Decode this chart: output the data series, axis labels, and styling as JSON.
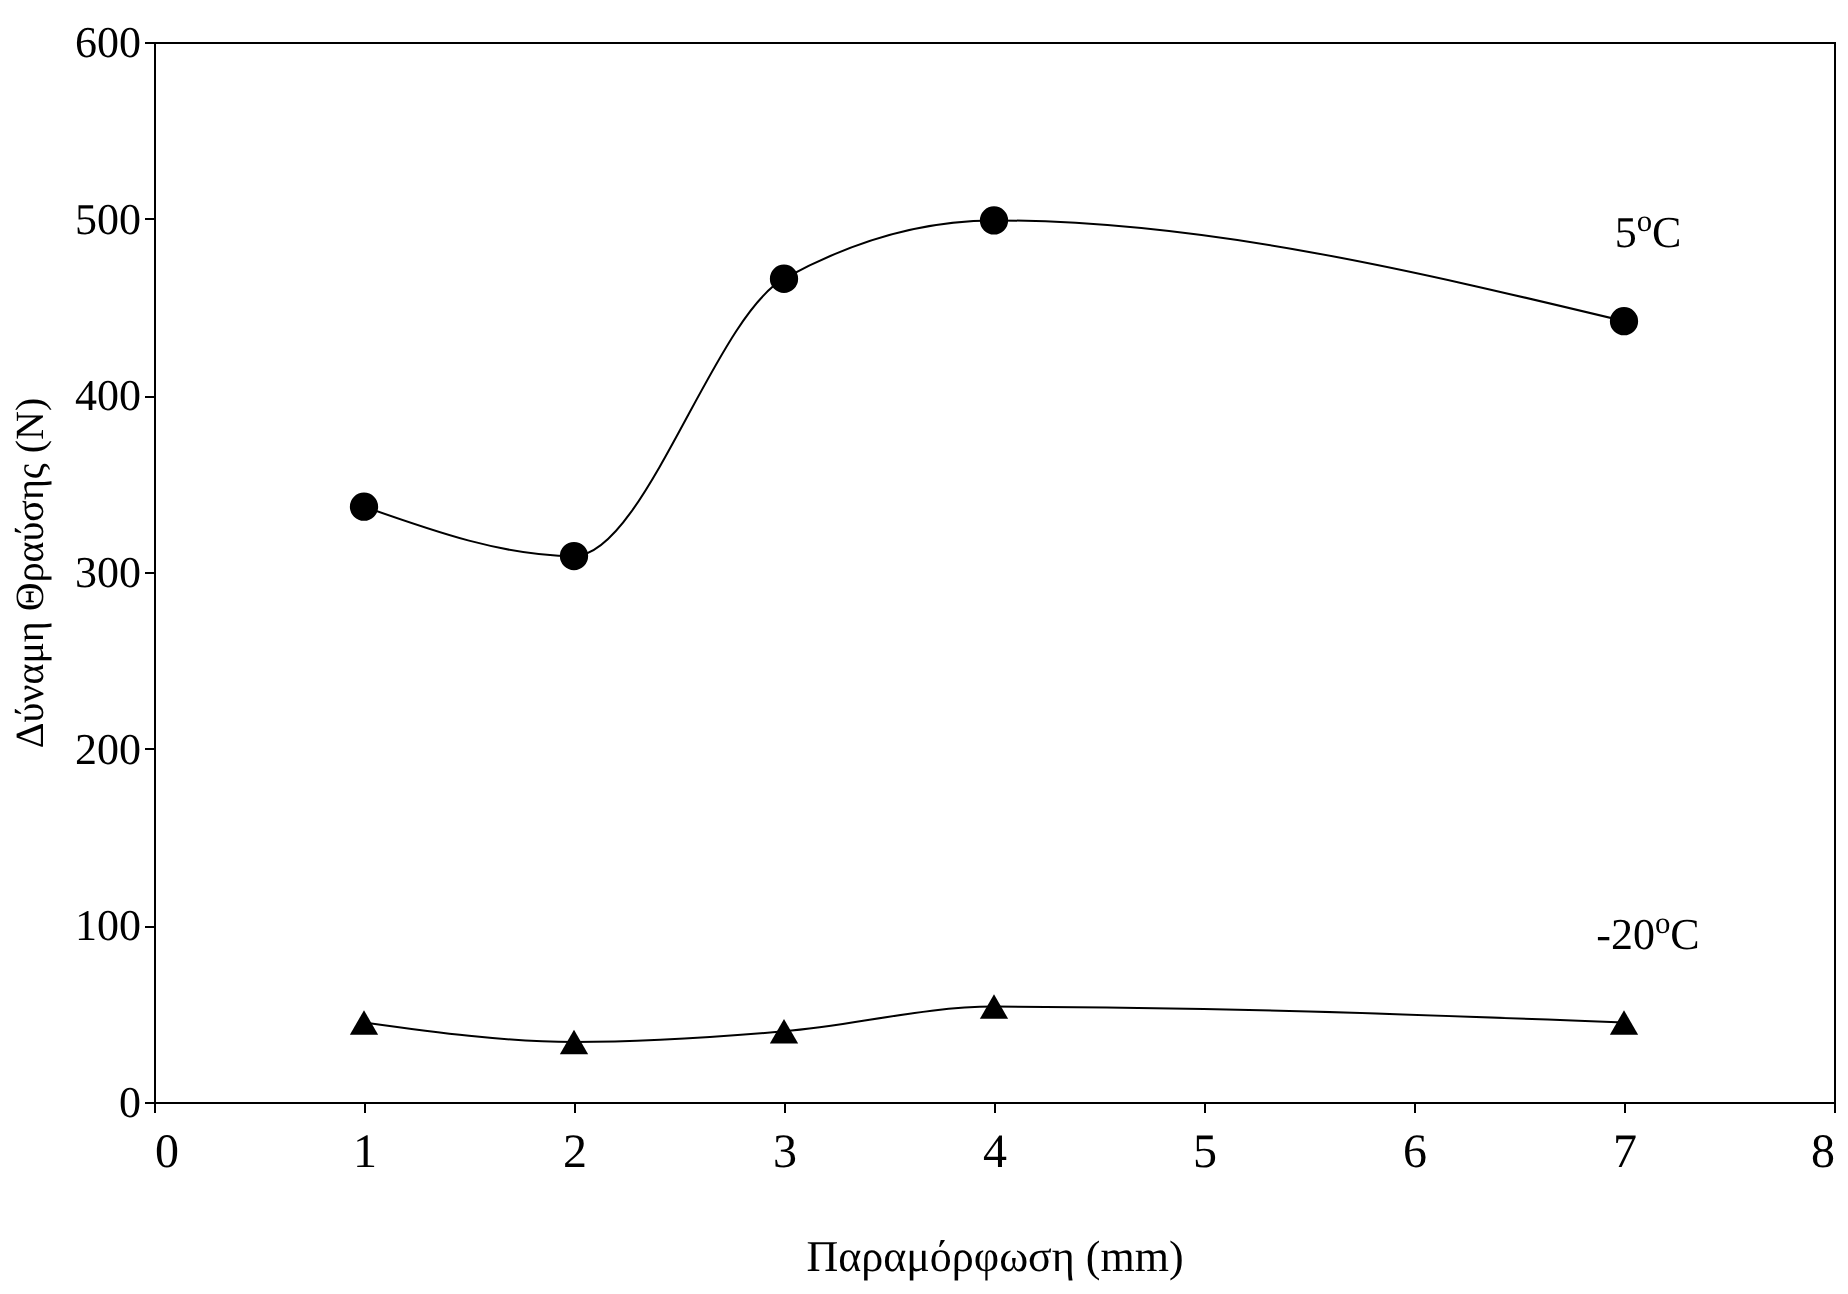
{
  "chart_data": {
    "type": "line",
    "xlabel": "Παραμόρφωση (mm)",
    "ylabel": "Δύναμη Θραύσης (N)",
    "x": [
      1,
      2,
      3,
      4,
      7
    ],
    "series": [
      {
        "name": "5$^{o}$C",
        "color": "#000000",
        "marker": "circle",
        "values": [
          337,
          309,
          466,
          499,
          442
        ]
      },
      {
        "name": "-20$^{o}$C",
        "color": "#000000",
        "marker": "triangle",
        "values": [
          45,
          34,
          40,
          54,
          45
        ]
      }
    ],
    "xlim": [
      0,
      8
    ],
    "xticks": [
      0,
      1,
      2,
      3,
      4,
      5,
      6,
      7,
      8
    ],
    "ylim": [
      0,
      600
    ],
    "yticks": [
      0,
      100,
      200,
      300,
      400,
      500,
      600
    ],
    "grid": false
  }
}
